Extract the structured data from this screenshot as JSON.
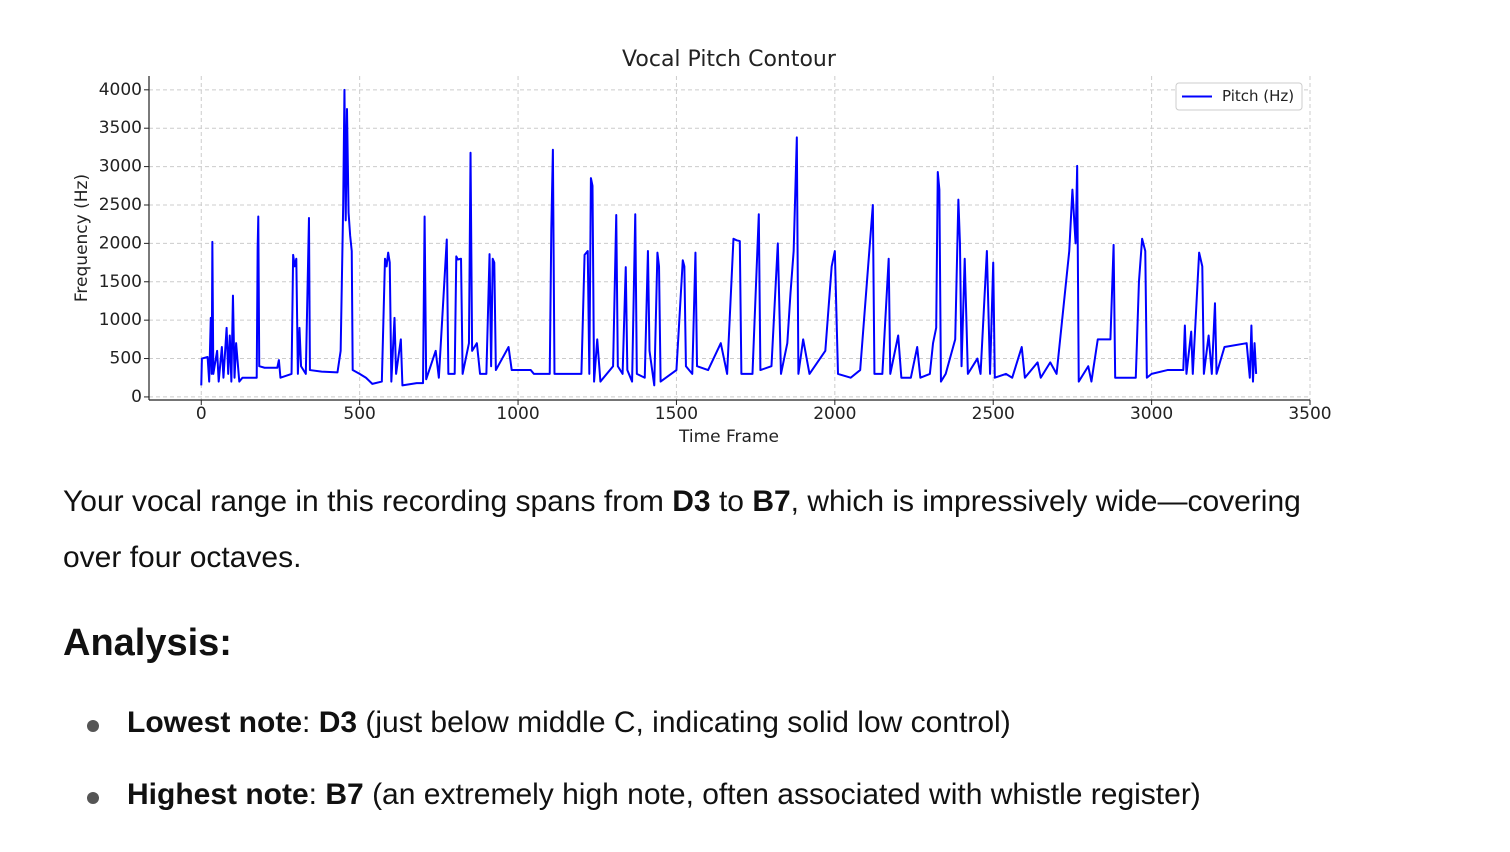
{
  "chart_data": {
    "type": "line",
    "title": "Vocal Pitch Contour",
    "xlabel": "Time Frame",
    "ylabel": "Frequency (Hz)",
    "x": [
      0,
      2,
      20,
      25,
      30,
      33,
      35,
      38,
      50,
      55,
      65,
      70,
      80,
      85,
      90,
      95,
      100,
      105,
      110,
      120,
      130,
      175,
      178,
      180,
      183,
      200,
      240,
      245,
      250,
      285,
      290,
      295,
      300,
      305,
      310,
      315,
      330,
      340,
      343,
      380,
      430,
      440,
      448,
      452,
      456,
      460,
      465,
      470,
      475,
      478,
      500,
      520,
      540,
      570,
      580,
      585,
      590,
      595,
      600,
      610,
      615,
      630,
      635,
      680,
      700,
      705,
      710,
      740,
      750,
      775,
      780,
      800,
      805,
      810,
      820,
      825,
      845,
      850,
      855,
      870,
      880,
      900,
      910,
      915,
      920,
      925,
      930,
      970,
      980,
      1000,
      1040,
      1050,
      1100,
      1105,
      1110,
      1115,
      1200,
      1210,
      1220,
      1225,
      1230,
      1235,
      1240,
      1250,
      1260,
      1300,
      1310,
      1315,
      1330,
      1340,
      1345,
      1360,
      1370,
      1375,
      1400,
      1410,
      1415,
      1430,
      1440,
      1445,
      1450,
      1500,
      1520,
      1525,
      1530,
      1550,
      1560,
      1565,
      1600,
      1640,
      1660,
      1680,
      1690,
      1700,
      1705,
      1740,
      1760,
      1765,
      1800,
      1820,
      1830,
      1850,
      1860,
      1870,
      1880,
      1885,
      1900,
      1920,
      1970,
      1990,
      2000,
      2010,
      2050,
      2080,
      2120,
      2125,
      2150,
      2170,
      2175,
      2200,
      2210,
      2240,
      2260,
      2270,
      2300,
      2310,
      2320,
      2325,
      2330,
      2335,
      2350,
      2380,
      2390,
      2395,
      2400,
      2410,
      2420,
      2450,
      2460,
      2480,
      2490,
      2500,
      2505,
      2540,
      2560,
      2590,
      2600,
      2640,
      2650,
      2680,
      2700,
      2740,
      2750,
      2760,
      2765,
      2770,
      2800,
      2810,
      2830,
      2870,
      2880,
      2885,
      2950,
      2960,
      2970,
      2980,
      2985,
      3000,
      3050,
      3100,
      3105,
      3110,
      3125,
      3130,
      3150,
      3160,
      3165,
      3180,
      3190,
      3200,
      3205,
      3230,
      3300,
      3310,
      3315,
      3320,
      3325,
      3330
    ],
    "series": [
      {
        "name": "Pitch (Hz)",
        "color": "#0000ff",
        "values": [
          150,
          500,
          520,
          200,
          1030,
          300,
          2020,
          300,
          600,
          200,
          650,
          250,
          900,
          300,
          800,
          200,
          1320,
          250,
          700,
          200,
          250,
          250,
          1950,
          2350,
          400,
          380,
          380,
          480,
          250,
          300,
          1850,
          1700,
          1800,
          300,
          900,
          400,
          300,
          2330,
          350,
          330,
          320,
          600,
          2500,
          4000,
          2300,
          3750,
          2400,
          2100,
          1900,
          350,
          300,
          250,
          170,
          200,
          1800,
          1700,
          1880,
          1750,
          200,
          1030,
          300,
          750,
          150,
          180,
          180,
          2350,
          230,
          600,
          250,
          2050,
          300,
          300,
          1830,
          1790,
          1800,
          300,
          700,
          3180,
          600,
          700,
          300,
          300,
          1860,
          400,
          1800,
          1750,
          350,
          650,
          350,
          350,
          350,
          300,
          300,
          2180,
          3220,
          300,
          300,
          1850,
          1900,
          300,
          2850,
          2750,
          200,
          750,
          200,
          400,
          2370,
          400,
          300,
          1690,
          350,
          200,
          2380,
          300,
          250,
          1900,
          600,
          150,
          1880,
          1700,
          200,
          350,
          1780,
          1700,
          400,
          300,
          1880,
          400,
          350,
          700,
          300,
          2060,
          2040,
          2030,
          300,
          300,
          2380,
          350,
          400,
          2000,
          300,
          700,
          1350,
          1900,
          3380,
          300,
          750,
          300,
          600,
          1700,
          1900,
          300,
          250,
          350,
          2500,
          300,
          300,
          1800,
          300,
          800,
          250,
          250,
          650,
          250,
          300,
          700,
          900,
          2930,
          2700,
          200,
          300,
          750,
          2570,
          2000,
          400,
          1800,
          300,
          500,
          300,
          1900,
          300,
          1750,
          250,
          300,
          250,
          650,
          250,
          450,
          250,
          450,
          300,
          1900,
          2700,
          2000,
          3010,
          200,
          400,
          200,
          750,
          750,
          1980,
          250,
          250,
          1500,
          2060,
          1900,
          250,
          300,
          350,
          350,
          930,
          300,
          850,
          300,
          1880,
          1700,
          300,
          800,
          300,
          1220,
          300,
          650,
          700,
          250,
          930,
          200,
          700,
          300
        ]
      }
    ],
    "xlim": [
      -165,
      3500
    ],
    "ylim": [
      -40,
      4180
    ],
    "xticks": [
      0,
      500,
      1000,
      1500,
      2000,
      2500,
      3000,
      3500
    ],
    "yticks": [
      0,
      500,
      1000,
      1500,
      2000,
      2500,
      3000,
      3500,
      4000
    ],
    "grid": true,
    "legend": "upper right"
  },
  "paragraph": [
    "Your vocal range in this recording spans from",
    "D3",
    "to",
    "B7",
    ", which is impressively wide—covering over four octaves."
  ],
  "heading": "Analysis:",
  "list": [
    {
      "term": "Lowest note",
      "punct": ":",
      "note": "D3",
      "detail": "(just below middle C, indicating solid low control)"
    },
    {
      "term": "Highest note",
      "punct": ":",
      "note": "B7",
      "detail": "(an extremely high note, often associated with whistle register)"
    }
  ]
}
